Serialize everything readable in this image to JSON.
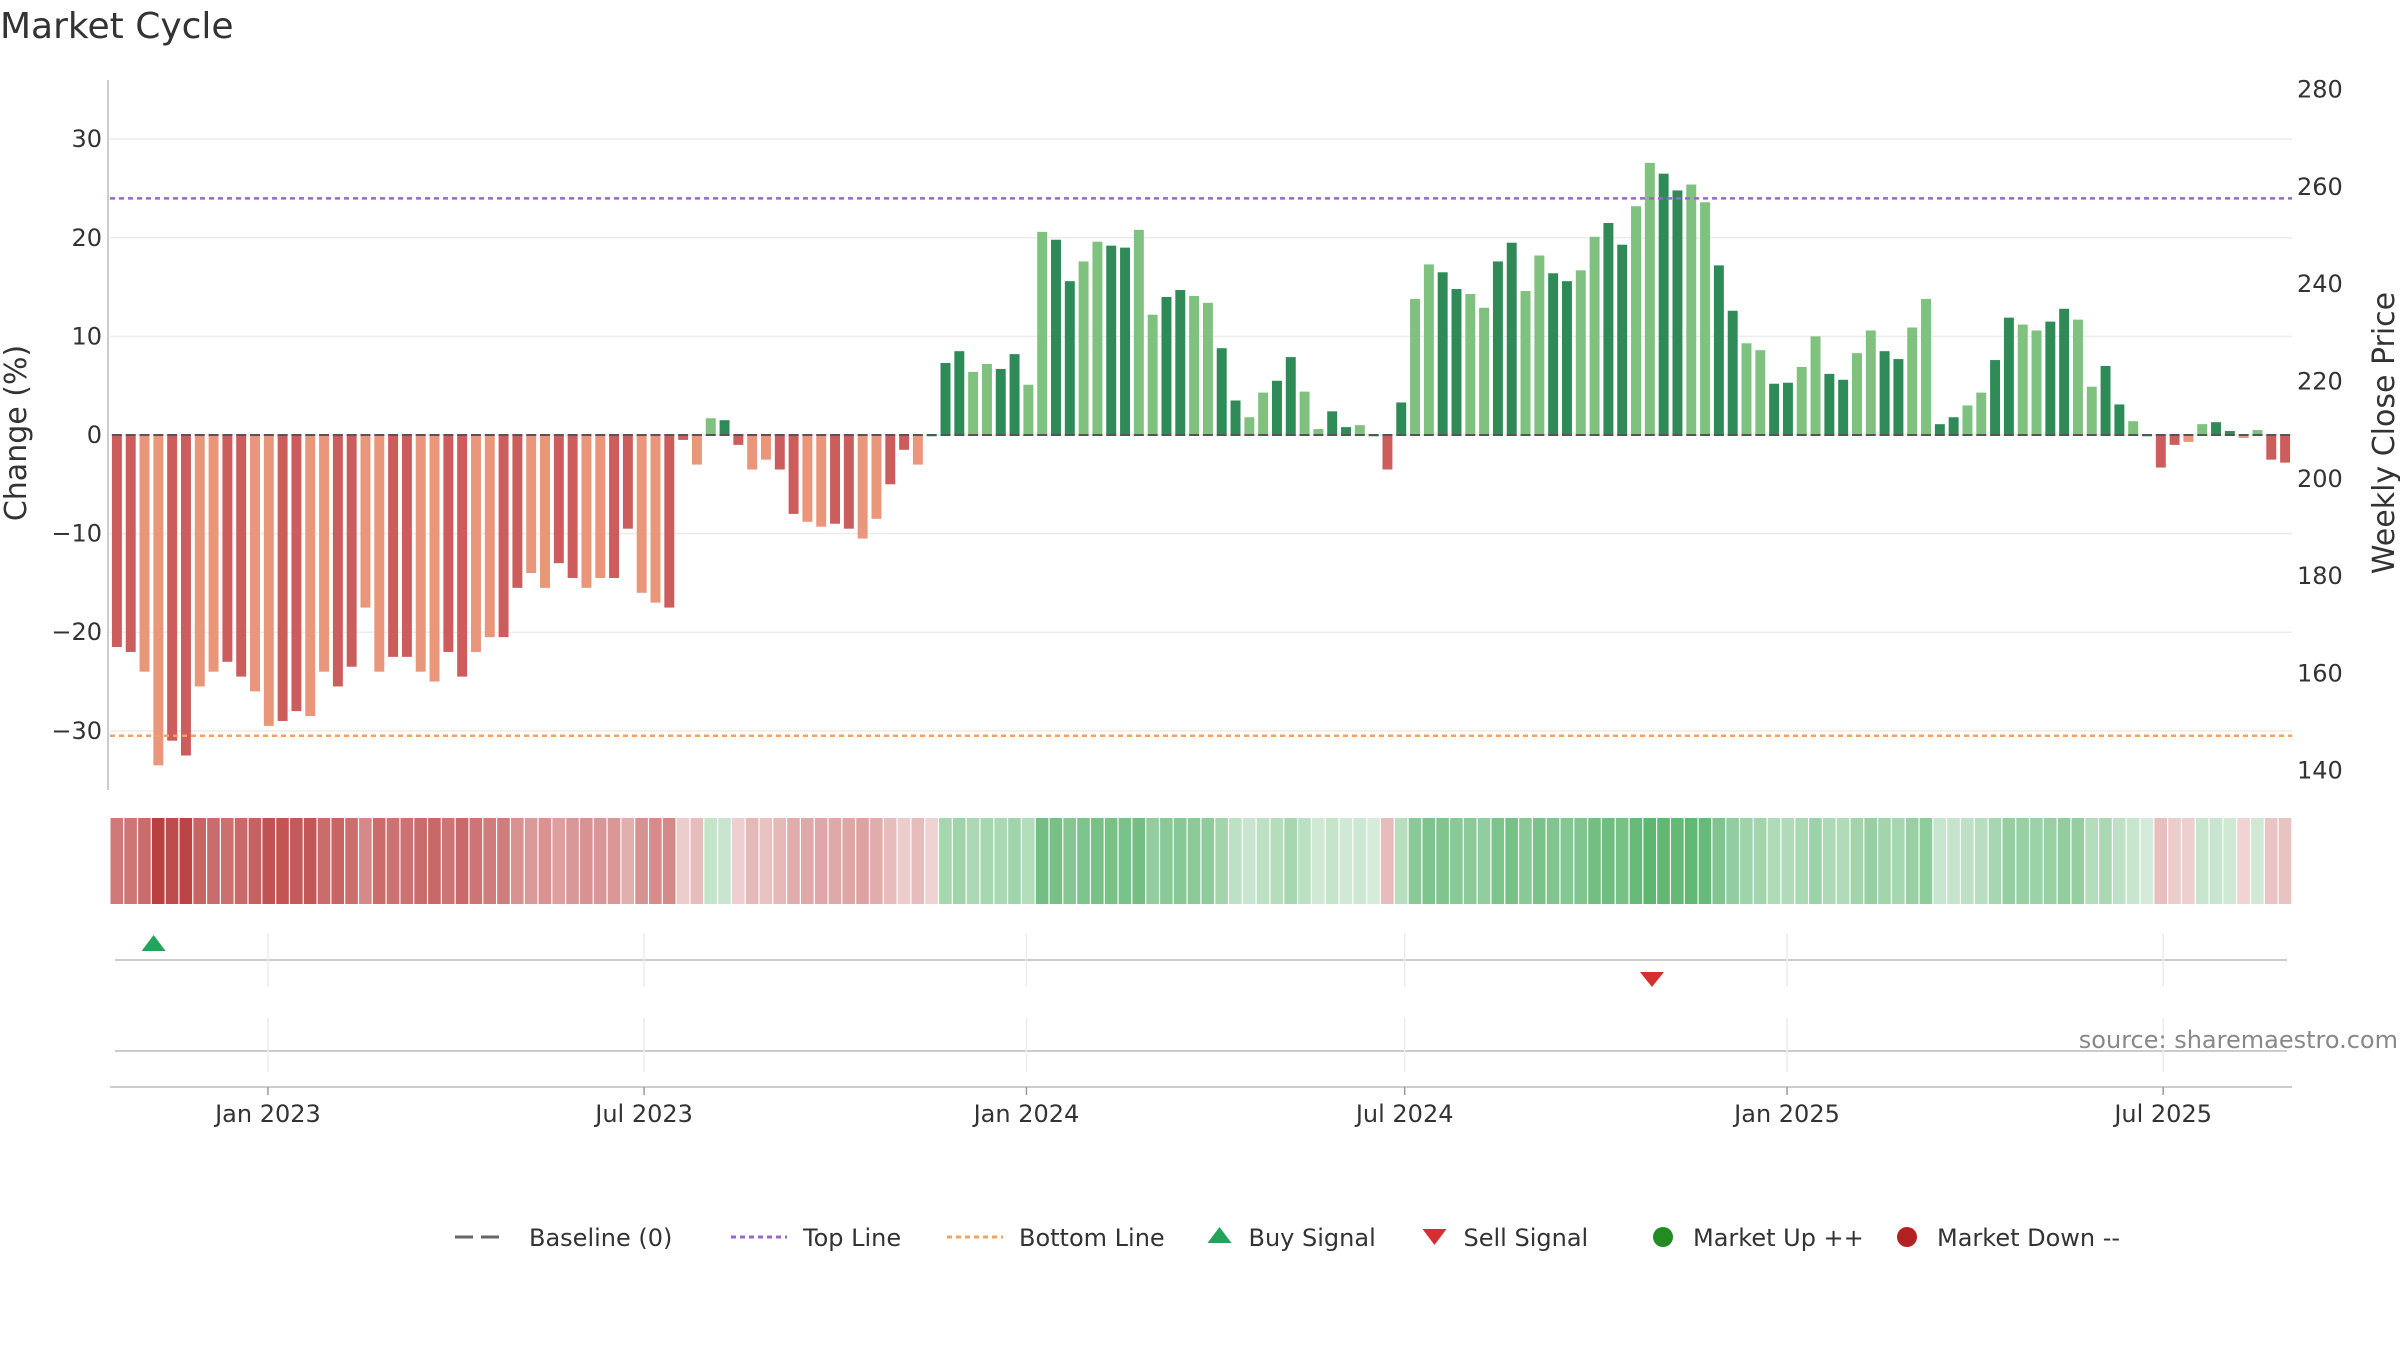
{
  "chart_data": {
    "type": "bar",
    "title": "Market Cycle",
    "ylabel": "Change (%)",
    "y2label": "Weekly Close Price",
    "ylim": [
      -36,
      36
    ],
    "y2lim": [
      136,
      282
    ],
    "yticks": [
      30,
      20,
      10,
      0,
      -10,
      -20,
      -30
    ],
    "ytick_labels": [
      "30",
      "20",
      "10",
      "0",
      "−10",
      "−20",
      "−30"
    ],
    "y2ticks": [
      280,
      260,
      240,
      220,
      200,
      180,
      160,
      140
    ],
    "top_line": 24,
    "bottom_line": -30.5,
    "start_date": "2022-10-17",
    "end_date": "2025-09-01",
    "bar_interval_days": 7,
    "xticks": [
      {
        "label": "Jan 2023",
        "date": "2023-01-01"
      },
      {
        "label": "Jul 2023",
        "date": "2023-07-01"
      },
      {
        "label": "Jan 2024",
        "date": "2024-01-01"
      },
      {
        "label": "Jul 2024",
        "date": "2024-07-01"
      },
      {
        "label": "Jan 2025",
        "date": "2025-01-01"
      },
      {
        "label": "Jul 2025",
        "date": "2025-07-01"
      }
    ],
    "series": [
      {
        "values": [
          -21.5,
          -22,
          -24,
          -33.5,
          -31,
          -32.5,
          -25.5,
          -24,
          -23,
          -24.5,
          -26,
          -29.5,
          -29,
          -28,
          -28.5,
          -24,
          -25.5,
          -23.5,
          -17.5,
          -24,
          -22.5,
          -22.5,
          -24,
          -25,
          -22,
          -24.5,
          -22,
          -20.5,
          -20.5,
          -15.5,
          -14,
          -15.5,
          -13,
          -14.5,
          -15.5,
          -14.5,
          -14.5,
          -9.5,
          -16,
          -17,
          -17.5,
          -0.5,
          -3,
          1.7,
          1.5,
          -1,
          -3.5,
          -2.5,
          -3.5,
          -8,
          -8.8,
          -9.3,
          -9,
          -9.5,
          -10.5,
          -8.5,
          -5,
          -1.5,
          -3,
          0,
          7.3,
          8.5,
          6.4,
          7.2,
          6.7,
          8.2,
          5.1,
          20.6,
          19.8,
          15.6,
          17.6,
          19.6,
          19.2,
          19,
          20.8,
          12.2,
          14,
          14.7,
          14.1,
          13.4,
          8.8,
          3.5,
          1.8,
          4.3,
          5.5,
          7.9,
          4.4,
          0.6,
          2.4,
          0.8,
          1,
          0,
          -3.5,
          3.3,
          13.8,
          17.3,
          16.5,
          14.8,
          14.3,
          12.9,
          17.6,
          19.5,
          14.6,
          18.2,
          16.4,
          15.6,
          16.7,
          20.1,
          21.5,
          19.3,
          23.2,
          27.6,
          26.5,
          24.8,
          25.4,
          23.6,
          17.2,
          12.6,
          9.3,
          8.6,
          5.2,
          5.3,
          6.9,
          10,
          6.2,
          5.6,
          8.3,
          10.6,
          8.5,
          7.7,
          10.9,
          13.8,
          1.1,
          1.8,
          3,
          4.3,
          7.6,
          11.9,
          11.2,
          10.6,
          11.5,
          12.8,
          11.7,
          4.9,
          7,
          3.1,
          1.4,
          0,
          -3.3,
          -1,
          -0.7,
          1.1,
          1.3,
          0.4,
          -0.3,
          0.5,
          -2.5,
          -2.8
        ]
      }
    ],
    "heat_strip": [
      -0.62,
      -0.64,
      -0.7,
      -0.98,
      -0.9,
      -0.95,
      -0.75,
      -0.7,
      -0.68,
      -0.72,
      -0.76,
      -0.86,
      -0.85,
      -0.82,
      -0.83,
      -0.7,
      -0.75,
      -0.69,
      -0.52,
      -0.7,
      -0.66,
      -0.66,
      -0.7,
      -0.73,
      -0.65,
      -0.72,
      -0.65,
      -0.6,
      -0.6,
      -0.46,
      -0.41,
      -0.46,
      -0.38,
      -0.43,
      -0.46,
      -0.43,
      -0.43,
      -0.28,
      -0.47,
      -0.5,
      -0.51,
      -0.1,
      -0.2,
      0.12,
      0.1,
      -0.08,
      -0.22,
      -0.16,
      -0.22,
      -0.3,
      -0.32,
      -0.33,
      -0.32,
      -0.34,
      -0.36,
      -0.3,
      -0.2,
      -0.1,
      -0.2,
      -0.06,
      0.3,
      0.34,
      0.27,
      0.3,
      0.28,
      0.33,
      0.22,
      0.6,
      0.58,
      0.5,
      0.54,
      0.58,
      0.57,
      0.56,
      0.6,
      0.42,
      0.46,
      0.48,
      0.46,
      0.44,
      0.32,
      0.16,
      0.1,
      0.18,
      0.22,
      0.3,
      0.18,
      0.06,
      0.12,
      0.06,
      0.08,
      0.02,
      -0.2,
      0.2,
      0.46,
      0.54,
      0.52,
      0.47,
      0.46,
      0.42,
      0.54,
      0.58,
      0.47,
      0.56,
      0.52,
      0.5,
      0.53,
      0.6,
      0.62,
      0.58,
      0.66,
      0.72,
      0.7,
      0.68,
      0.7,
      0.66,
      0.52,
      0.42,
      0.34,
      0.32,
      0.24,
      0.24,
      0.28,
      0.36,
      0.26,
      0.24,
      0.32,
      0.38,
      0.32,
      0.3,
      0.38,
      0.44,
      0.1,
      0.12,
      0.16,
      0.2,
      0.3,
      0.4,
      0.38,
      0.36,
      0.38,
      0.42,
      0.4,
      0.22,
      0.28,
      0.16,
      0.1,
      0.04,
      -0.18,
      -0.1,
      -0.08,
      0.1,
      0.1,
      0.06,
      -0.05,
      0.06,
      -0.15,
      -0.16
    ],
    "signals": [
      {
        "type": "buy",
        "date": "2022-11-07"
      },
      {
        "type": "sell",
        "date": "2024-10-28"
      }
    ],
    "source": "source: sharemaestro.com",
    "legend_position": "bottom",
    "legend": [
      {
        "label": "Baseline (0)",
        "icon": "dash-line-icon",
        "color": "#666666"
      },
      {
        "label": "Top Line",
        "icon": "dotted-line-icon",
        "color": "#9966cc"
      },
      {
        "label": "Bottom Line",
        "icon": "dotted-line-icon",
        "color": "#f4a261"
      },
      {
        "label": "Buy Signal",
        "icon": "triangle-up-icon",
        "color": "#22a55a"
      },
      {
        "label": "Sell Signal",
        "icon": "triangle-down-icon",
        "color": "#d62f2f"
      },
      {
        "label": "Market Up ++",
        "icon": "circle-icon",
        "color": "#228b22"
      },
      {
        "label": "Market Down --",
        "icon": "circle-icon",
        "color": "#b22222"
      }
    ],
    "colors": {
      "up_strong": "#2e8b57",
      "up_weak": "#7fc17f",
      "down_strong": "#cd5c5c",
      "down_weak": "#e9967a",
      "top_line": "#9966cc",
      "bottom_line": "#f4a261",
      "buy": "#22a55a",
      "sell": "#d62f2f"
    }
  }
}
